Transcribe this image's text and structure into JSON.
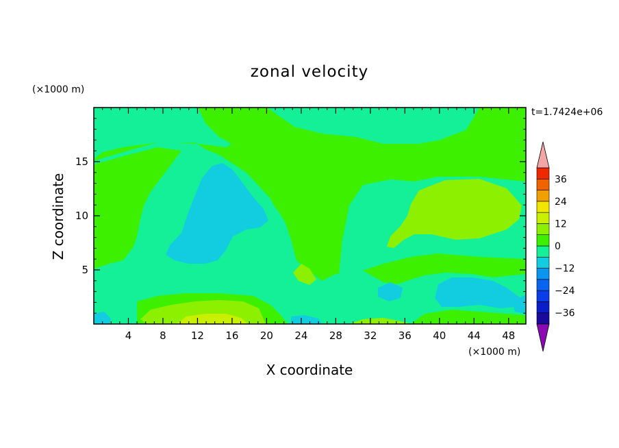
{
  "chart_data": {
    "type": "heatmap",
    "title": "zonal velocity",
    "xlabel": "X coordinate",
    "ylabel": "Z coordinate",
    "x_unit": "(×1000 m)",
    "y_unit": "(×1000 m)",
    "time_label": "t=1.7424e+06",
    "xlim": [
      0,
      50
    ],
    "ylim": [
      0,
      20
    ],
    "x_ticks": [
      "4",
      "8",
      "12",
      "16",
      "20",
      "24",
      "28",
      "32",
      "36",
      "40",
      "44",
      "48"
    ],
    "y_ticks": [
      "5",
      "10",
      "15"
    ],
    "colorbar": {
      "tick_labels": [
        "36",
        "24",
        "12",
        "0",
        "-12",
        "-24",
        "-36"
      ],
      "levels": [
        -42,
        -36,
        -30,
        -24,
        -18,
        -12,
        -6,
        0,
        6,
        12,
        18,
        24,
        30,
        36,
        42
      ],
      "colors": [
        "#5a0aa0",
        "#1a0a9c",
        "#0a1ec8",
        "#0a3ce8",
        "#0a64f0",
        "#0a96f0",
        "#12cde0",
        "#14f098",
        "#3cf000",
        "#8cf000",
        "#c8f000",
        "#f0e600",
        "#f0a000",
        "#f06400",
        "#f02800",
        "#d81010"
      ],
      "over_color": "#f4a6a6",
      "under_color": "#8c0ab4"
    },
    "legend": "right",
    "grid": false,
    "regions": [
      {
        "level": "0 to 6",
        "color": "#14f098",
        "desc": "background"
      },
      {
        "level": "6 to 12",
        "color": "#3cf000"
      },
      {
        "level": "12 to 18",
        "color": "#8cf000"
      },
      {
        "level": "18 to 24",
        "color": "#c8f000"
      },
      {
        "level": "-6 to 0",
        "color": "#12cde0"
      }
    ]
  }
}
